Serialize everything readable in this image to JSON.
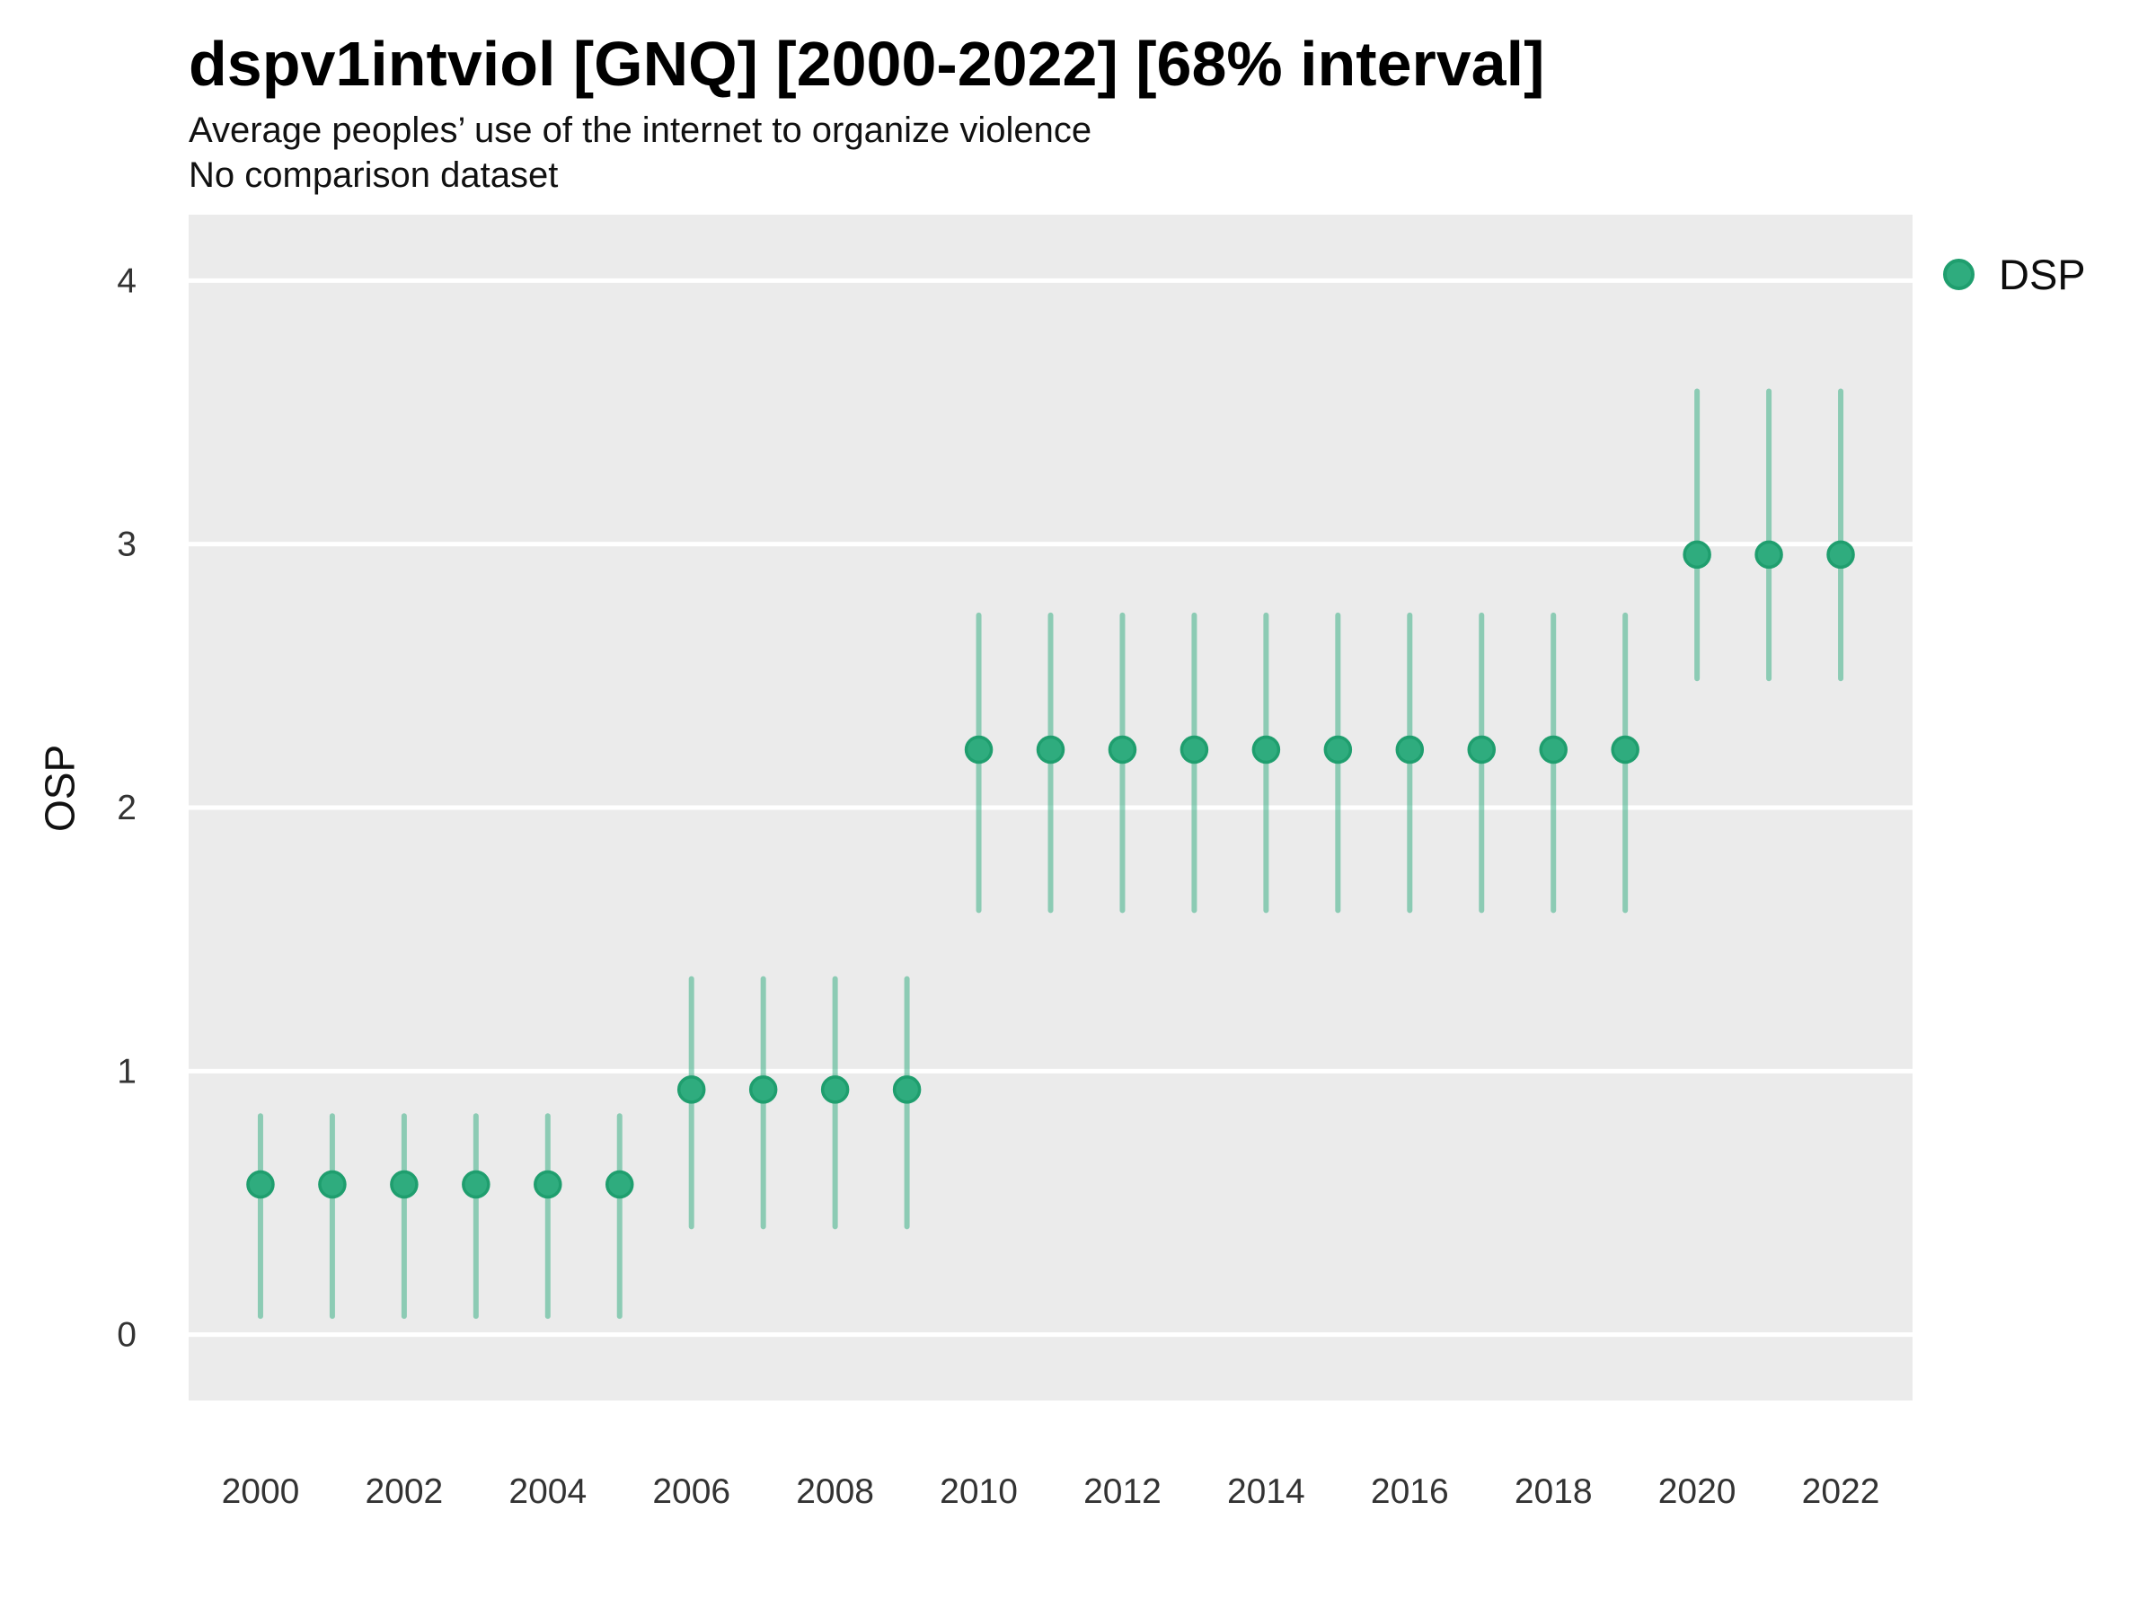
{
  "header": {
    "title": "dspv1intviol [GNQ] [2000-2022] [68% interval]",
    "subtitle": "Average peoples’ use of the internet to organize violence",
    "subtitle2": "No comparison dataset"
  },
  "legend": {
    "label": "DSP"
  },
  "axes": {
    "y_title": "OSP"
  },
  "colors": {
    "point_fill": "#2FAC7E",
    "point_stroke": "#1F9E6E",
    "interval_line": "#2AAB7D",
    "panel_bg": "#EBEBEB",
    "gridline": "#FFFFFF",
    "tick_text": "#333333"
  },
  "chart_data": {
    "type": "pointrange",
    "title": "dspv1intviol [GNQ] [2000-2022] [68% interval]",
    "subtitle": "Average peoples’ use of the internet to organize violence",
    "note": "No comparison dataset",
    "interval_level": "68%",
    "xlabel": "",
    "ylabel": "OSP",
    "legend_position": "right",
    "grid": "horizontal-major",
    "xlim": [
      1999,
      2023
    ],
    "ylim": [
      -0.25,
      4.25
    ],
    "yticks": [
      0,
      1,
      2,
      3,
      4
    ],
    "xticks": [
      2000,
      2002,
      2004,
      2006,
      2008,
      2010,
      2012,
      2014,
      2016,
      2018,
      2020,
      2022
    ],
    "x": [
      2000,
      2001,
      2002,
      2003,
      2004,
      2005,
      2006,
      2007,
      2008,
      2009,
      2010,
      2011,
      2012,
      2013,
      2014,
      2015,
      2016,
      2017,
      2018,
      2019,
      2020,
      2021,
      2022
    ],
    "series": [
      {
        "name": "DSP",
        "estimate": [
          0.57,
          0.57,
          0.57,
          0.57,
          0.57,
          0.57,
          0.93,
          0.93,
          0.93,
          0.93,
          2.22,
          2.22,
          2.22,
          2.22,
          2.22,
          2.22,
          2.22,
          2.22,
          2.22,
          2.22,
          2.96,
          2.96,
          2.96
        ],
        "lower": [
          0.07,
          0.07,
          0.07,
          0.07,
          0.07,
          0.07,
          0.41,
          0.41,
          0.41,
          0.41,
          1.61,
          1.61,
          1.61,
          1.61,
          1.61,
          1.61,
          1.61,
          1.61,
          1.61,
          1.61,
          2.49,
          2.49,
          2.49
        ],
        "upper": [
          0.83,
          0.83,
          0.83,
          0.83,
          0.83,
          0.83,
          1.35,
          1.35,
          1.35,
          1.35,
          2.73,
          2.73,
          2.73,
          2.73,
          2.73,
          2.73,
          2.73,
          2.73,
          2.73,
          2.73,
          3.58,
          3.58,
          3.58
        ]
      }
    ]
  }
}
